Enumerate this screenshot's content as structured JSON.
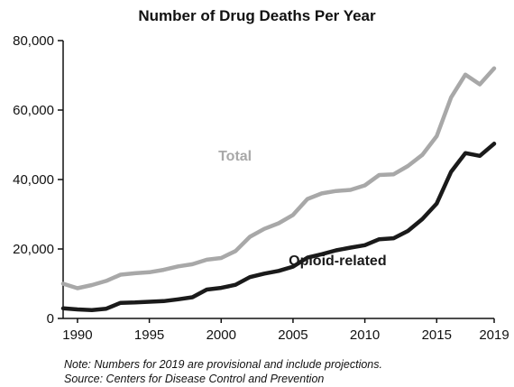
{
  "chart_data": {
    "type": "line",
    "title": "Number of Drug Deaths Per Year",
    "xlabel": "",
    "ylabel": "",
    "xlim": [
      1989,
      2019
    ],
    "ylim": [
      0,
      80000
    ],
    "y_ticks": [
      0,
      20000,
      40000,
      60000,
      80000
    ],
    "y_tick_labels": [
      "0",
      "20,000",
      "40,000",
      "60,000",
      "80,000"
    ],
    "x_ticks": [
      1990,
      1995,
      2000,
      2005,
      2010,
      2015,
      2019
    ],
    "x_tick_labels": [
      "1990",
      "1995",
      "2000",
      "2005",
      "2010",
      "2015",
      "2019"
    ],
    "grid": false,
    "legend": "none (series labelled inline)",
    "x": [
      1989,
      1990,
      1991,
      1992,
      1993,
      1994,
      1995,
      1996,
      1997,
      1998,
      1999,
      2000,
      2001,
      2002,
      2003,
      2004,
      2005,
      2006,
      2007,
      2008,
      2009,
      2010,
      2011,
      2012,
      2013,
      2014,
      2015,
      2016,
      2017,
      2018,
      2019
    ],
    "series": [
      {
        "name": "Total",
        "color": "#a8a8a8",
        "label_x": 1999.8,
        "label_y": 45500,
        "values": [
          10000,
          8700,
          9600,
          10800,
          12600,
          13000,
          13300,
          14000,
          15000,
          15600,
          16900,
          17400,
          19400,
          23500,
          25800,
          27400,
          29800,
          34400,
          36000,
          36700,
          37000,
          38300,
          41300,
          41500,
          43900,
          47100,
          52500,
          63600,
          70200,
          67400,
          72000
        ]
      },
      {
        "name": "Opioid-related",
        "color": "#1a1a1a",
        "label_x": 2004.7,
        "label_y": 15300,
        "values": [
          2900,
          2600,
          2400,
          2800,
          4500,
          4600,
          4800,
          5000,
          5500,
          6100,
          8300,
          8800,
          9700,
          11900,
          12900,
          13700,
          14900,
          17500,
          18500,
          19600,
          20400,
          21100,
          22800,
          23100,
          25200,
          28600,
          33100,
          42200,
          47600,
          46800,
          50300
        ]
      }
    ],
    "notes": [
      "Note: Numbers for 2019 are provisional and include projections.",
      "Source: Centers for Disease Control and Prevention"
    ]
  }
}
